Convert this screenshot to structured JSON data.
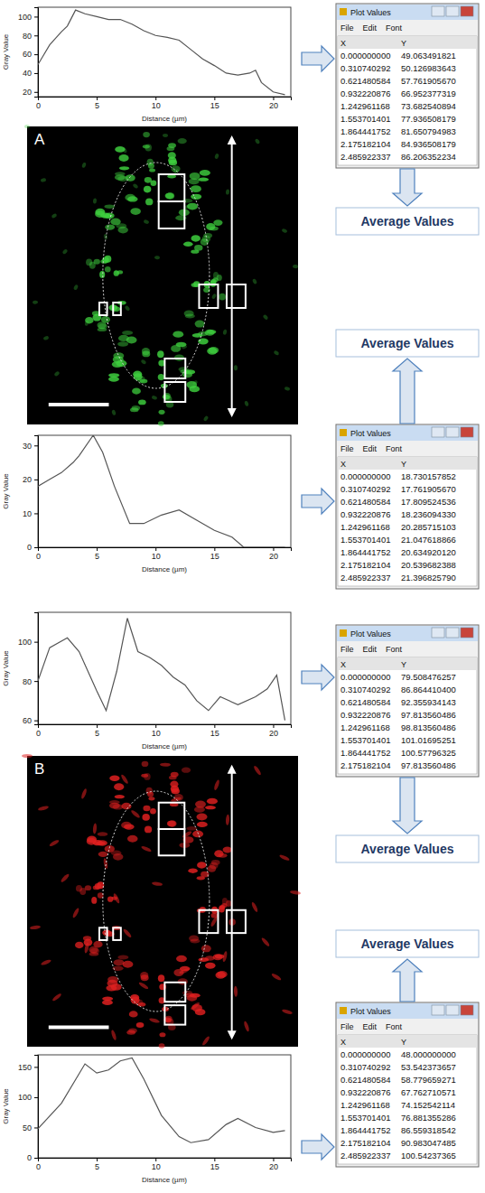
{
  "chart_data": [
    {
      "type": "line",
      "x_label": "Distance (µm)",
      "y_label": "Gray Value",
      "x": [
        0,
        1,
        2,
        2.5,
        3.2,
        4,
        5,
        6,
        7,
        8,
        9,
        10,
        11,
        12,
        13,
        14,
        15,
        16,
        17,
        18,
        18.5,
        19,
        20,
        21
      ],
      "values": [
        49,
        70,
        84,
        90,
        107,
        103,
        100,
        97,
        97,
        92,
        85,
        80,
        78,
        75,
        65,
        55,
        48,
        40,
        38,
        40,
        43,
        30,
        20,
        17
      ],
      "xlim": [
        0,
        21.5
      ],
      "xticks": [
        0,
        5,
        10,
        15,
        20
      ],
      "ylim": [
        15,
        110
      ],
      "yticks": [
        20,
        40,
        60,
        80,
        100
      ],
      "color": "#555555"
    },
    {
      "type": "line",
      "x_label": "Distance (µm)",
      "y_label": "Gray Value",
      "x": [
        0,
        1,
        2,
        3,
        3.5,
        4.7,
        5.5,
        6.5,
        7.8,
        9,
        10.5,
        12,
        13.5,
        15,
        16.5,
        17.5,
        19,
        21
      ],
      "values": [
        18,
        20,
        22,
        25,
        27,
        33,
        28,
        18,
        7,
        7,
        9.5,
        11,
        8,
        5,
        3,
        0,
        0,
        0
      ],
      "xlim": [
        0,
        21.5
      ],
      "xticks": [
        0,
        5,
        10,
        15,
        20
      ],
      "ylim": [
        0,
        33
      ],
      "yticks": [
        0,
        10,
        20,
        30
      ],
      "color": "#555555"
    },
    {
      "type": "line",
      "x_label": "Distance (µm)",
      "y_label": "Gray Value",
      "x": [
        0,
        1,
        2.5,
        3.5,
        5,
        5.8,
        6.7,
        7.6,
        8.5,
        9.5,
        10.5,
        11.5,
        12.5,
        13.5,
        14.5,
        15.5,
        17,
        18.5,
        19.5,
        20.3,
        21
      ],
      "values": [
        80,
        97,
        102,
        95,
        75,
        65,
        85,
        112,
        95,
        92,
        88,
        82,
        78,
        70,
        65,
        72,
        68,
        72,
        76,
        83,
        60
      ],
      "xlim": [
        0,
        21.5
      ],
      "xticks": [
        0,
        5,
        10,
        15,
        20
      ],
      "ylim": [
        58,
        115
      ],
      "yticks": [
        60,
        80,
        100
      ],
      "color": "#555555"
    },
    {
      "type": "line",
      "x_label": "Distance (µm)",
      "y_label": "Gray Value",
      "x": [
        0,
        2,
        4,
        5,
        6,
        7,
        8,
        9,
        10.5,
        12,
        13,
        14.5,
        16,
        17,
        18.5,
        20,
        21
      ],
      "values": [
        48,
        90,
        155,
        140,
        145,
        160,
        165,
        130,
        70,
        35,
        25,
        30,
        55,
        65,
        50,
        42,
        45
      ],
      "xlim": [
        0,
        21.5
      ],
      "xticks": [
        0,
        5,
        10,
        15,
        20
      ],
      "ylim": [
        0,
        170
      ],
      "yticks": [
        0,
        50,
        100,
        150
      ],
      "color": "#555555"
    }
  ],
  "panels": [
    {
      "letter": "A",
      "average_labels": [
        "Average Values",
        "Average Values"
      ],
      "windows": [
        {
          "title": "Plot Values",
          "menu": [
            "File",
            "Edit",
            "Font"
          ],
          "columns": [
            "X",
            "Y"
          ],
          "rows": [
            [
              "0.000000000",
              "49.063491821"
            ],
            [
              "0.310740292",
              "50.126983643"
            ],
            [
              "0.621480584",
              "57.761905670"
            ],
            [
              "0.932220876",
              "66.952377319"
            ],
            [
              "1.242961168",
              "73.682540894"
            ],
            [
              "1.553701401",
              "77.936508179"
            ],
            [
              "1.864441752",
              "81.650794983"
            ],
            [
              "2.175182104",
              "84.936508179"
            ],
            [
              "2.485922337",
              "86.206352234"
            ]
          ]
        },
        {
          "title": "Plot Values",
          "menu": [
            "File",
            "Edit",
            "Font"
          ],
          "columns": [
            "X",
            "Y"
          ],
          "rows": [
            [
              "0.000000000",
              "18.730157852"
            ],
            [
              "0.310740292",
              "17.761905670"
            ],
            [
              "0.621480584",
              "17.809524536"
            ],
            [
              "0.932220876",
              "18.236094330"
            ],
            [
              "1.242961168",
              "20.285715103"
            ],
            [
              "1.553701401",
              "21.047618866"
            ],
            [
              "1.864441752",
              "20.634920120"
            ],
            [
              "2.175182104",
              "20.539682388"
            ],
            [
              "2.485922337",
              "21.396825790"
            ]
          ]
        }
      ]
    },
    {
      "letter": "B",
      "average_labels": [
        "Average Values",
        "Average Values"
      ],
      "windows": [
        {
          "title": "Plot Values",
          "menu": [
            "File",
            "Edit",
            "Font"
          ],
          "columns": [
            "X",
            "Y"
          ],
          "rows": [
            [
              "0.000000000",
              "79.508476257"
            ],
            [
              "0.310740292",
              "86.864410400"
            ],
            [
              "0.621480584",
              "92.355934143"
            ],
            [
              "0.932220876",
              "97.813560486"
            ],
            [
              "1.242961168",
              "98.813560486"
            ],
            [
              "1.553701401",
              "101.01695251"
            ],
            [
              "1.864441752",
              "100.57796325"
            ],
            [
              "2.175182104",
              "97.813560486"
            ]
          ]
        },
        {
          "title": "Plot Values",
          "menu": [
            "File",
            "Edit",
            "Font"
          ],
          "columns": [
            "X",
            "Y"
          ],
          "rows": [
            [
              "0.000000000",
              "48.000000000"
            ],
            [
              "0.310740292",
              "53.542373657"
            ],
            [
              "0.621480584",
              "58.779659271"
            ],
            [
              "0.932220876",
              "67.762710571"
            ],
            [
              "1.242961168",
              "74.152542114"
            ],
            [
              "1.553701401",
              "76.881355286"
            ],
            [
              "1.864441752",
              "86.559318542"
            ],
            [
              "2.175182104",
              "90.983047485"
            ],
            [
              "2.485922337",
              "100.54237365"
            ]
          ]
        }
      ]
    }
  ]
}
